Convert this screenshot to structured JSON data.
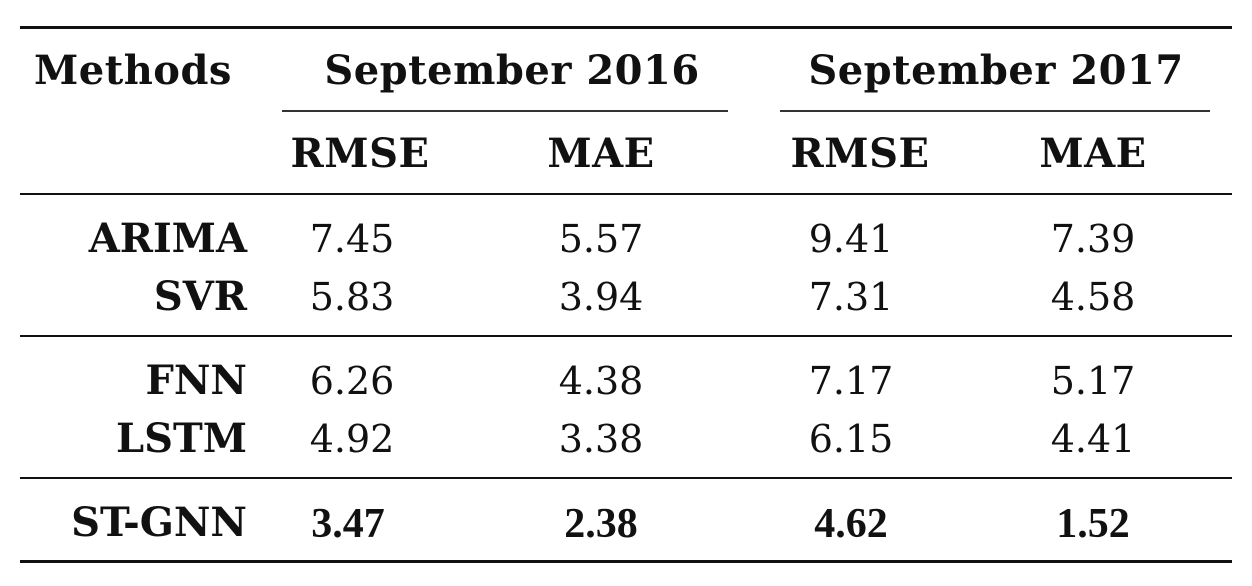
{
  "table": {
    "header": {
      "methods": "Methods",
      "groups": [
        "September 2016",
        "September 2017"
      ],
      "subcolumns": [
        "RMSE",
        "MAE",
        "RMSE",
        "MAE"
      ]
    },
    "rows": [
      {
        "method": "ARIMA",
        "values": [
          "7.45",
          "5.57",
          "9.41",
          "7.39"
        ]
      },
      {
        "method": "SVR",
        "values": [
          "5.83",
          "3.94",
          "7.31",
          "4.58"
        ]
      },
      {
        "method": "FNN",
        "values": [
          "6.26",
          "4.38",
          "7.17",
          "5.17"
        ]
      },
      {
        "method": "LSTM",
        "values": [
          "4.92",
          "3.38",
          "6.15",
          "4.41"
        ]
      },
      {
        "method": "ST-GNN",
        "values": [
          "3.47",
          "2.38",
          "4.62",
          "1.52"
        ],
        "best": true
      }
    ]
  }
}
